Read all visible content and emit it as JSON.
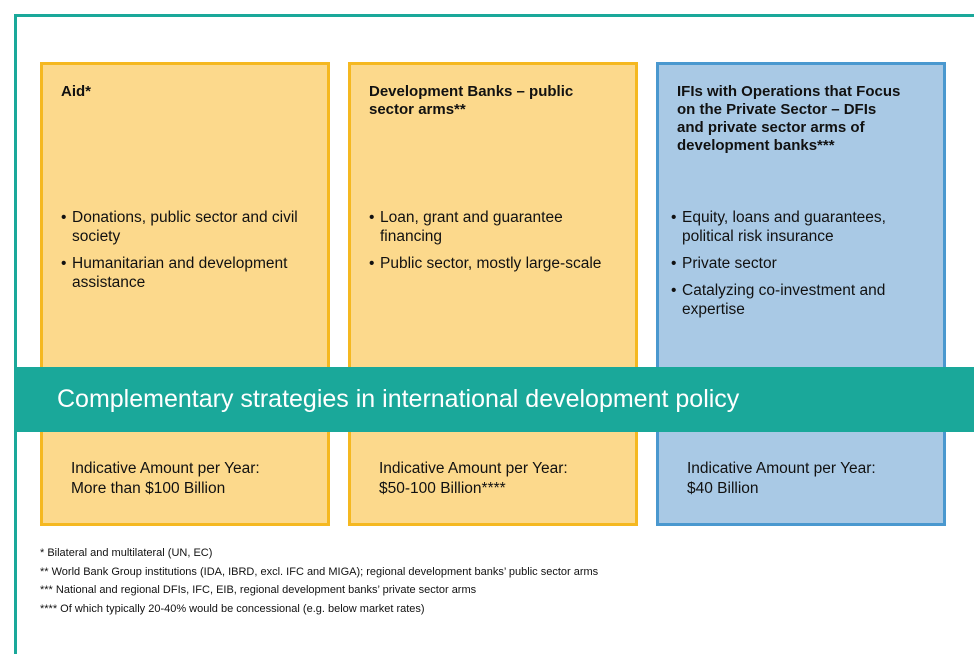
{
  "columns": [
    {
      "title": "Aid*",
      "bullets": [
        "Donations, public sector and civil society",
        "Humanitarian and development assistance"
      ],
      "amount_label": "Indicative Amount per Year:",
      "amount_value": "More than $100 Billion"
    },
    {
      "title": "Development Banks – public sector arms**",
      "bullets": [
        "Loan, grant and guarantee financing",
        "Public sector, mostly large-scale"
      ],
      "amount_label": "Indicative Amount per Year:",
      "amount_value": "$50-100 Billion****"
    },
    {
      "title": "IFIs with Operations that Focus on the Private Sector – DFIs and private sector arms of development banks***",
      "bullets": [
        "Equity, loans and guarantees, political risk insurance",
        "Private sector",
        "Catalyzing co-investment and expertise"
      ],
      "amount_label": "Indicative Amount per Year:",
      "amount_value": "$40 Billion"
    }
  ],
  "banner": "Complementary strategies in international development policy",
  "footnotes": [
    "* Bilateral and multilateral (UN, EC)",
    "** World Bank Group institutions (IDA, IBRD, excl. IFC and MIGA); regional development banks’ public sector arms",
    "***  National and regional DFIs, IFC, EIB, regional development banks’ private sector arms",
    "**** Of which typically 20-40% would be concessional (e.g.  below market rates)"
  ]
}
